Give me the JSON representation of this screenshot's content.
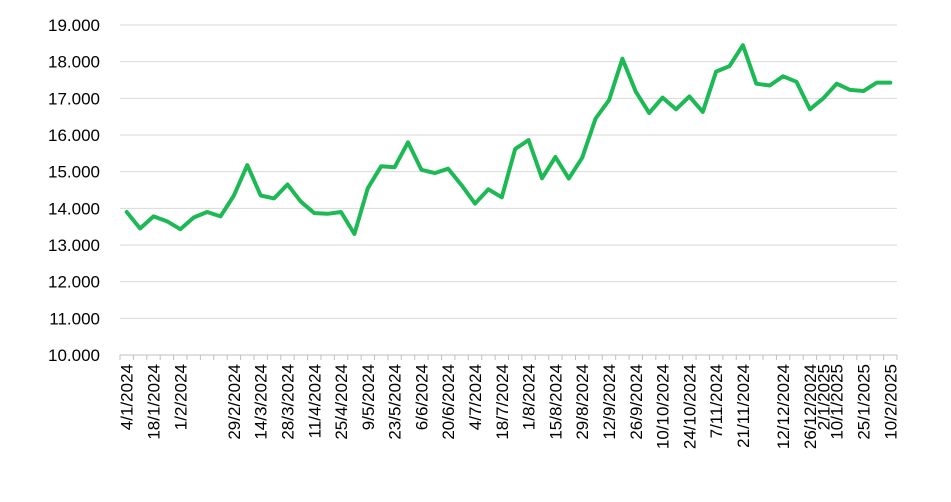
{
  "chart_data": {
    "type": "line",
    "title": "",
    "xlabel": "",
    "ylabel": "",
    "ylim": [
      10000,
      19000
    ],
    "yticks": [
      {
        "value": 10000,
        "label": "10.000"
      },
      {
        "value": 11000,
        "label": "11.000"
      },
      {
        "value": 12000,
        "label": "12.000"
      },
      {
        "value": 13000,
        "label": "13.000"
      },
      {
        "value": 14000,
        "label": "14.000"
      },
      {
        "value": 15000,
        "label": "15.000"
      },
      {
        "value": 16000,
        "label": "16.000"
      },
      {
        "value": 17000,
        "label": "17.000"
      },
      {
        "value": 18000,
        "label": "18.000"
      },
      {
        "value": 19000,
        "label": "19.000"
      }
    ],
    "grid": true,
    "line_color": "#1db954",
    "x": [
      "4/1/2024",
      "11/1/2024",
      "18/1/2024",
      "25/1/2024",
      "1/2/2024",
      "8/2/2024",
      "15/2/2024",
      "22/2/2024",
      "29/2/2024",
      "7/3/2024",
      "14/3/2024",
      "21/3/2024",
      "28/3/2024",
      "4/4/2024",
      "11/4/2024",
      "18/4/2024",
      "25/4/2024",
      "2/5/2024",
      "9/5/2024",
      "16/5/2024",
      "23/5/2024",
      "30/5/2024",
      "6/6/2024",
      "13/6/2024",
      "20/6/2024",
      "27/6/2024",
      "4/7/2024",
      "11/7/2024",
      "18/7/2024",
      "25/7/2024",
      "1/8/2024",
      "8/8/2024",
      "15/8/2024",
      "22/8/2024",
      "29/8/2024",
      "5/9/2024",
      "12/9/2024",
      "19/9/2024",
      "26/9/2024",
      "3/10/2024",
      "10/10/2024",
      "17/10/2024",
      "24/10/2024",
      "31/10/2024",
      "7/11/2024",
      "14/11/2024",
      "21/11/2024",
      "28/11/2024",
      "5/12/2024",
      "12/12/2024",
      "19/12/2024",
      "26/12/2024",
      "2/1/2025",
      "10/1/2025",
      "17/1/2025",
      "25/1/2025",
      "3/2/2025",
      "10/2/2025"
    ],
    "x_tick_labels": [
      "4/1/2024",
      "18/1/2024",
      "1/2/2024",
      "29/2/2024",
      "14/3/2024",
      "28/3/2024",
      "11/4/2024",
      "25/4/2024",
      "9/5/2024",
      "23/5/2024",
      "6/6/2024",
      "20/6/2024",
      "4/7/2024",
      "18/7/2024",
      "1/8/2024",
      "15/8/2024",
      "29/8/2024",
      "12/9/2024",
      "26/9/2024",
      "10/10/2024",
      "24/10/2024",
      "7/11/2024",
      "21/11/2024",
      "12/12/2024",
      "26/12/2024",
      "2/1/2025",
      "10/1/2025",
      "25/1/2025",
      "10/2/2025"
    ],
    "series": [
      {
        "name": "",
        "values": [
          13900,
          13450,
          13780,
          13650,
          13430,
          13750,
          13900,
          13780,
          14350,
          15180,
          14350,
          14270,
          14650,
          14180,
          13870,
          13850,
          13900,
          13300,
          14550,
          15150,
          15120,
          15800,
          15050,
          14960,
          15080,
          14630,
          14130,
          14520,
          14300,
          15620,
          15860,
          14820,
          15400,
          14810,
          15380,
          16450,
          16950,
          18080,
          17180,
          16600,
          17020,
          16700,
          17050,
          16630,
          17730,
          17880,
          18450,
          17400,
          17350,
          17600,
          17450,
          16700,
          17000,
          17400,
          17230,
          17200,
          17430,
          17430
        ]
      }
    ]
  }
}
